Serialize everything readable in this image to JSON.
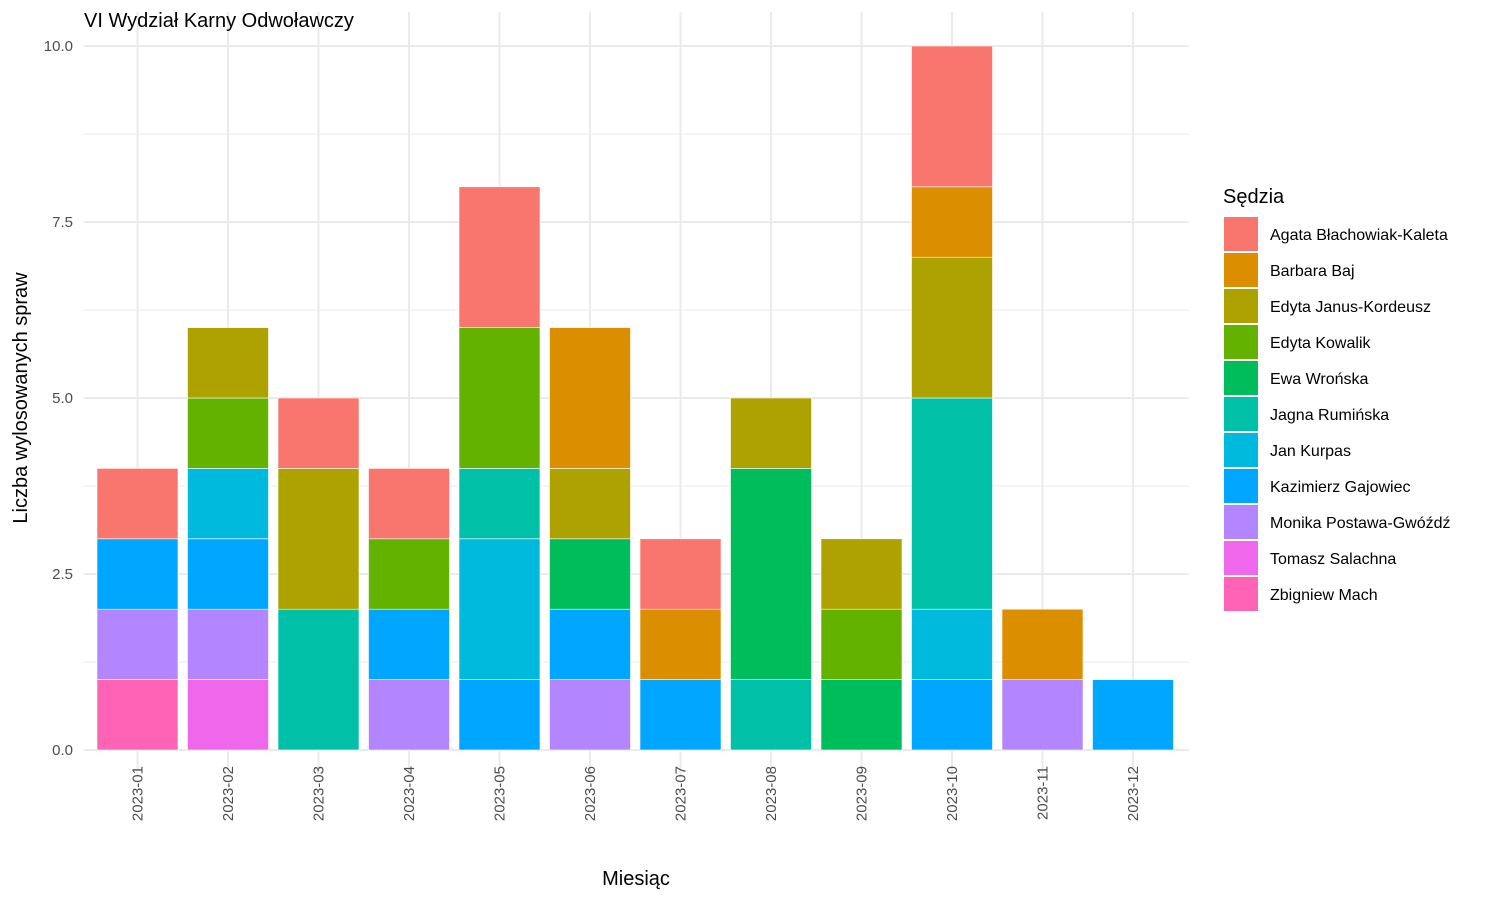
{
  "chart_data": {
    "type": "bar",
    "stacked": true,
    "title": "VI Wydział Karny Odwoławczy",
    "xlabel": "Miesiąc",
    "ylabel": "Liczba wylosowanych spraw",
    "ylim": [
      0,
      10
    ],
    "yticks": [
      "0.0",
      "2.5",
      "5.0",
      "7.5",
      "10.0"
    ],
    "grid": true,
    "legend_title": "Sędzia",
    "legend_position": "right",
    "categories": [
      "2023-01",
      "2023-02",
      "2023-03",
      "2023-04",
      "2023-05",
      "2023-06",
      "2023-07",
      "2023-08",
      "2023-09",
      "2023-10",
      "2023-11",
      "2023-12"
    ],
    "series": [
      {
        "name": "Agata Błachowiak-Kaleta",
        "color": "#F8766D",
        "values": [
          1,
          0,
          1,
          1,
          2,
          0,
          1,
          0,
          0,
          2,
          0,
          0
        ]
      },
      {
        "name": "Barbara Baj",
        "color": "#DB8E00",
        "values": [
          0,
          0,
          0,
          0,
          0,
          2,
          1,
          0,
          0,
          1,
          1,
          0
        ]
      },
      {
        "name": "Edyta Janus-Kordeusz",
        "color": "#AEA200",
        "values": [
          0,
          1,
          2,
          0,
          0,
          1,
          0,
          1,
          1,
          2,
          0,
          0
        ]
      },
      {
        "name": "Edyta Kowalik",
        "color": "#64B200",
        "values": [
          0,
          1,
          0,
          1,
          2,
          0,
          0,
          0,
          1,
          0,
          0,
          0
        ]
      },
      {
        "name": "Ewa Wrońska",
        "color": "#00BD5C",
        "values": [
          0,
          0,
          0,
          0,
          0,
          1,
          0,
          3,
          1,
          0,
          0,
          0
        ]
      },
      {
        "name": "Jagna Rumińska",
        "color": "#00C1A7",
        "values": [
          0,
          0,
          2,
          0,
          1,
          0,
          0,
          1,
          0,
          3,
          0,
          0
        ]
      },
      {
        "name": "Jan Kurpas",
        "color": "#00BADE",
        "values": [
          0,
          1,
          0,
          0,
          2,
          0,
          0,
          0,
          0,
          1,
          0,
          0
        ]
      },
      {
        "name": "Kazimierz Gajowiec",
        "color": "#00A6FF",
        "values": [
          1,
          1,
          0,
          1,
          1,
          1,
          1,
          0,
          0,
          1,
          0,
          1
        ]
      },
      {
        "name": "Monika Postawa-Gwóźdź",
        "color": "#B385FF",
        "values": [
          1,
          1,
          0,
          1,
          0,
          1,
          0,
          0,
          0,
          0,
          1,
          0
        ]
      },
      {
        "name": "Tomasz Salachna",
        "color": "#EF67EB",
        "values": [
          0,
          1,
          0,
          0,
          0,
          0,
          0,
          0,
          0,
          0,
          0,
          0
        ]
      },
      {
        "name": "Zbigniew Mach",
        "color": "#FF63B6",
        "values": [
          1,
          0,
          0,
          0,
          0,
          0,
          0,
          0,
          0,
          0,
          0,
          0
        ]
      }
    ]
  }
}
